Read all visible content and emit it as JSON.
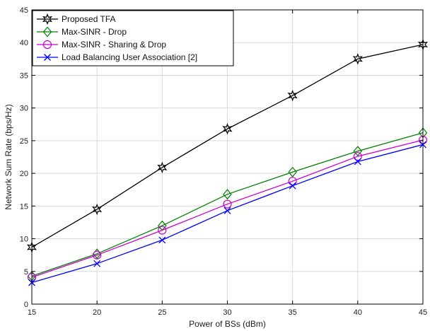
{
  "chart_data": {
    "type": "line",
    "xlabel": "Power of BSs (dBm)",
    "ylabel": "Network Sum Rate (bps/Hz)",
    "x": [
      15,
      20,
      25,
      30,
      35,
      40,
      45
    ],
    "xlim": [
      15,
      45
    ],
    "ylim": [
      0,
      45
    ],
    "xticks": [
      15,
      20,
      25,
      30,
      35,
      40,
      45
    ],
    "yticks": [
      0,
      5,
      10,
      15,
      20,
      25,
      30,
      35,
      40,
      45
    ],
    "grid": true,
    "legend_position": "top-left",
    "series": [
      {
        "name": "Proposed TFA",
        "values": [
          8.7,
          14.5,
          20.9,
          26.8,
          31.9,
          37.5,
          39.7
        ],
        "color": "#000000",
        "marker": "hexagram"
      },
      {
        "name": "Max-SINR - Drop",
        "values": [
          4.3,
          7.7,
          12.0,
          16.8,
          20.2,
          23.4,
          26.2
        ],
        "color": "#008000",
        "marker": "diamond"
      },
      {
        "name": "Max-SINR - Sharing & Drop",
        "values": [
          4.1,
          7.5,
          11.3,
          15.3,
          18.8,
          22.6,
          25.1
        ],
        "color": "#cc00cc",
        "marker": "circle"
      },
      {
        "name": "Load Balancing User Association [2]",
        "values": [
          3.3,
          6.2,
          9.8,
          14.3,
          18.1,
          21.8,
          24.4
        ],
        "color": "#0000ff",
        "marker": "x"
      }
    ]
  }
}
